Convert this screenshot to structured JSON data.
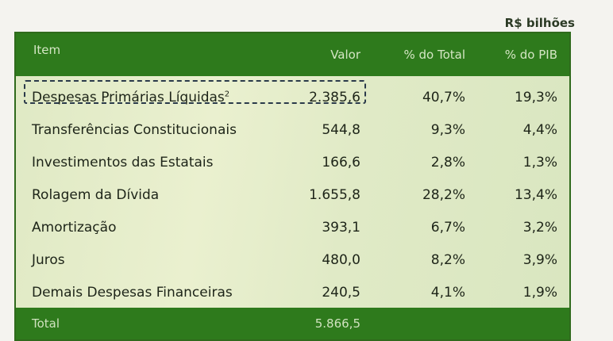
{
  "unit_label": "R$ bilhões",
  "header": {
    "item": "Item",
    "valor": "Valor",
    "pct_total": "% do Total",
    "pct_pib": "% do PIB"
  },
  "rows": [
    {
      "item": "Despesas Primárias Líquidas",
      "note": "2",
      "valor": "2.385,6",
      "pct_total": "40,7%",
      "pct_pib": "19,3%"
    },
    {
      "item": "Transferências Constitucionais",
      "valor": "544,8",
      "pct_total": "9,3%",
      "pct_pib": "4,4%"
    },
    {
      "item": "Investimentos das Estatais",
      "valor": "166,6",
      "pct_total": "2,8%",
      "pct_pib": "1,3%"
    },
    {
      "item": "Rolagem da Dívida",
      "valor": "1.655,8",
      "pct_total": "28,2%",
      "pct_pib": "13,4%"
    },
    {
      "item": "Amortização",
      "valor": "393,1",
      "pct_total": "6,7%",
      "pct_pib": "3,2%"
    },
    {
      "item": "Juros",
      "valor": "480,0",
      "pct_total": "8,2%",
      "pct_pib": "3,9%"
    },
    {
      "item": "Demais Despesas Financeiras",
      "valor": "240,5",
      "pct_total": "4,1%",
      "pct_pib": "1,9%"
    }
  ],
  "total": {
    "label": "Total",
    "valor": "5.866,5"
  }
}
